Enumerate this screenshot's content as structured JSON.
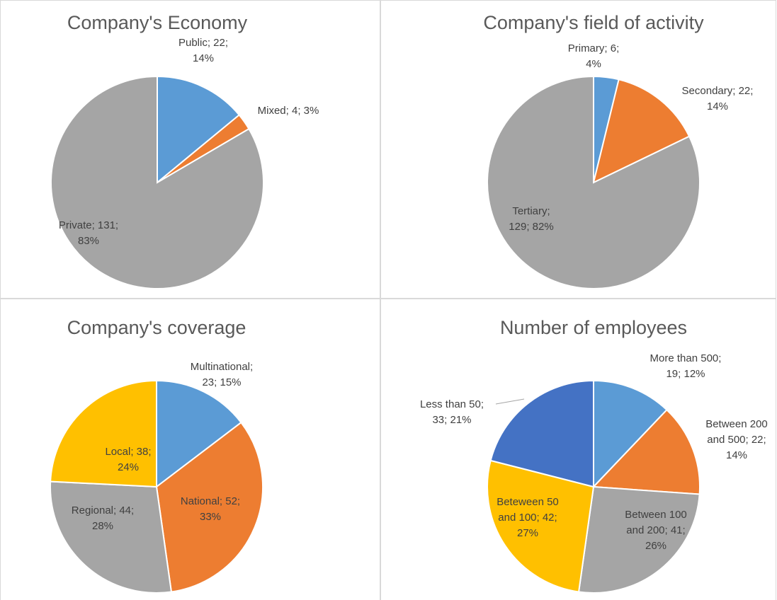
{
  "chart_data": [
    {
      "type": "pie",
      "title": "Company's Economy",
      "categories": [
        "Public",
        "Mixed",
        "Private"
      ],
      "values": [
        22,
        4,
        131
      ],
      "value_labels": [
        "Public; 22; 14%",
        "Mixed; 4; 3%",
        "Private; 131; 83%"
      ],
      "colors": [
        "#5b9bd5",
        "#ed7d31",
        "#a5a5a5"
      ]
    },
    {
      "type": "pie",
      "title": "Company's field of activity",
      "categories": [
        "Primary",
        "Secondary",
        "Tertiary"
      ],
      "values": [
        6,
        22,
        129
      ],
      "value_labels": [
        "Primary; 6; 4%",
        "Secondary; 22; 14%",
        "Tertiary; 129; 82%"
      ],
      "colors": [
        "#5b9bd5",
        "#ed7d31",
        "#a5a5a5"
      ]
    },
    {
      "type": "pie",
      "title": "Company's coverage",
      "categories": [
        "Multinational",
        "National",
        "Regional",
        "Local"
      ],
      "values": [
        23,
        52,
        44,
        38
      ],
      "value_labels": [
        "Multinational; 23; 15%",
        "National; 52; 33%",
        "Regional; 44; 28%",
        "Local; 38; 24%"
      ],
      "colors": [
        "#5b9bd5",
        "#ed7d31",
        "#a5a5a5",
        "#ffc000"
      ]
    },
    {
      "type": "pie",
      "title": "Number of employees",
      "categories": [
        "More than 500",
        "Between 200 and 500",
        "Between 100 and 200",
        "Beteween 50 and 100",
        "Less than 50"
      ],
      "values": [
        19,
        22,
        41,
        42,
        33
      ],
      "value_labels": [
        "More than 500; 19; 12%",
        "Between 200 and 500; 22; 14%",
        "Between 100 and 200; 41; 26%",
        "Beteween 50 and 100; 42; 27%",
        "Less than 50; 33; 21%"
      ],
      "colors": [
        "#5b9bd5",
        "#ed7d31",
        "#a5a5a5",
        "#ffc000",
        "#4472c4"
      ]
    }
  ]
}
